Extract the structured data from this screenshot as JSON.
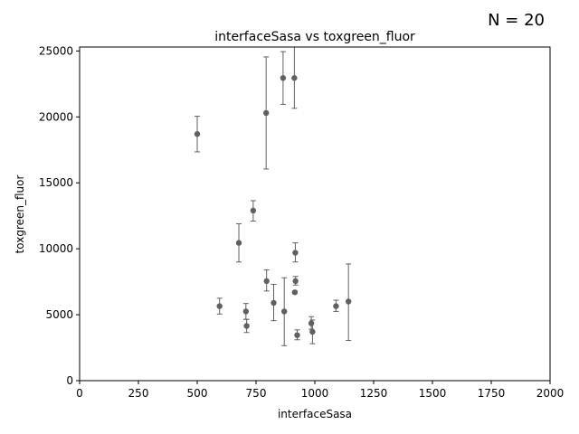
{
  "annotation": "N = 20",
  "chart_data": {
    "type": "scatter",
    "title": "interfaceSasa vs toxgreen_fluor",
    "xlabel": "interfaceSasa",
    "ylabel": "toxgreen_fluor",
    "xlim": [
      0,
      2000
    ],
    "ylim": [
      0,
      25300
    ],
    "xticks": [
      0,
      250,
      500,
      750,
      1000,
      1250,
      1500,
      1750,
      2000
    ],
    "yticks": [
      0,
      5000,
      10000,
      15000,
      20000,
      25000
    ],
    "grid": false,
    "legend": "none",
    "marker_color": "#606060",
    "errorbar_color": "#606060",
    "points": [
      {
        "x": 500,
        "y": 18700,
        "yerr_low": 17350,
        "yerr_high": 20050
      },
      {
        "x": 595,
        "y": 5650,
        "yerr_low": 5050,
        "yerr_high": 6250
      },
      {
        "x": 677,
        "y": 10450,
        "yerr_low": 9000,
        "yerr_high": 11900
      },
      {
        "x": 707,
        "y": 5250,
        "yerr_low": 4650,
        "yerr_high": 5850
      },
      {
        "x": 710,
        "y": 4150,
        "yerr_low": 3650,
        "yerr_high": 4650
      },
      {
        "x": 738,
        "y": 12900,
        "yerr_low": 12100,
        "yerr_high": 13650
      },
      {
        "x": 793,
        "y": 20300,
        "yerr_low": 16050,
        "yerr_high": 24550
      },
      {
        "x": 795,
        "y": 7550,
        "yerr_low": 6800,
        "yerr_high": 8400
      },
      {
        "x": 825,
        "y": 5900,
        "yerr_low": 4550,
        "yerr_high": 7300
      },
      {
        "x": 865,
        "y": 22950,
        "yerr_low": 20950,
        "yerr_high": 24950
      },
      {
        "x": 870,
        "y": 5250,
        "yerr_low": 2650,
        "yerr_high": 7800
      },
      {
        "x": 913,
        "y": 22950,
        "yerr_low": 20650,
        "yerr_high": 25300
      },
      {
        "x": 915,
        "y": 6700,
        "yerr_low": 6600,
        "yerr_high": 6800
      },
      {
        "x": 917,
        "y": 9700,
        "yerr_low": 9000,
        "yerr_high": 10450
      },
      {
        "x": 918,
        "y": 7550,
        "yerr_low": 7250,
        "yerr_high": 7900
      },
      {
        "x": 925,
        "y": 3450,
        "yerr_low": 3100,
        "yerr_high": 3850
      },
      {
        "x": 985,
        "y": 4350,
        "yerr_low": 3900,
        "yerr_high": 4850
      },
      {
        "x": 990,
        "y": 3700,
        "yerr_low": 2800,
        "yerr_high": 4600
      },
      {
        "x": 1090,
        "y": 5650,
        "yerr_low": 5250,
        "yerr_high": 6100
      },
      {
        "x": 1143,
        "y": 6000,
        "yerr_low": 3050,
        "yerr_high": 8850
      }
    ]
  }
}
